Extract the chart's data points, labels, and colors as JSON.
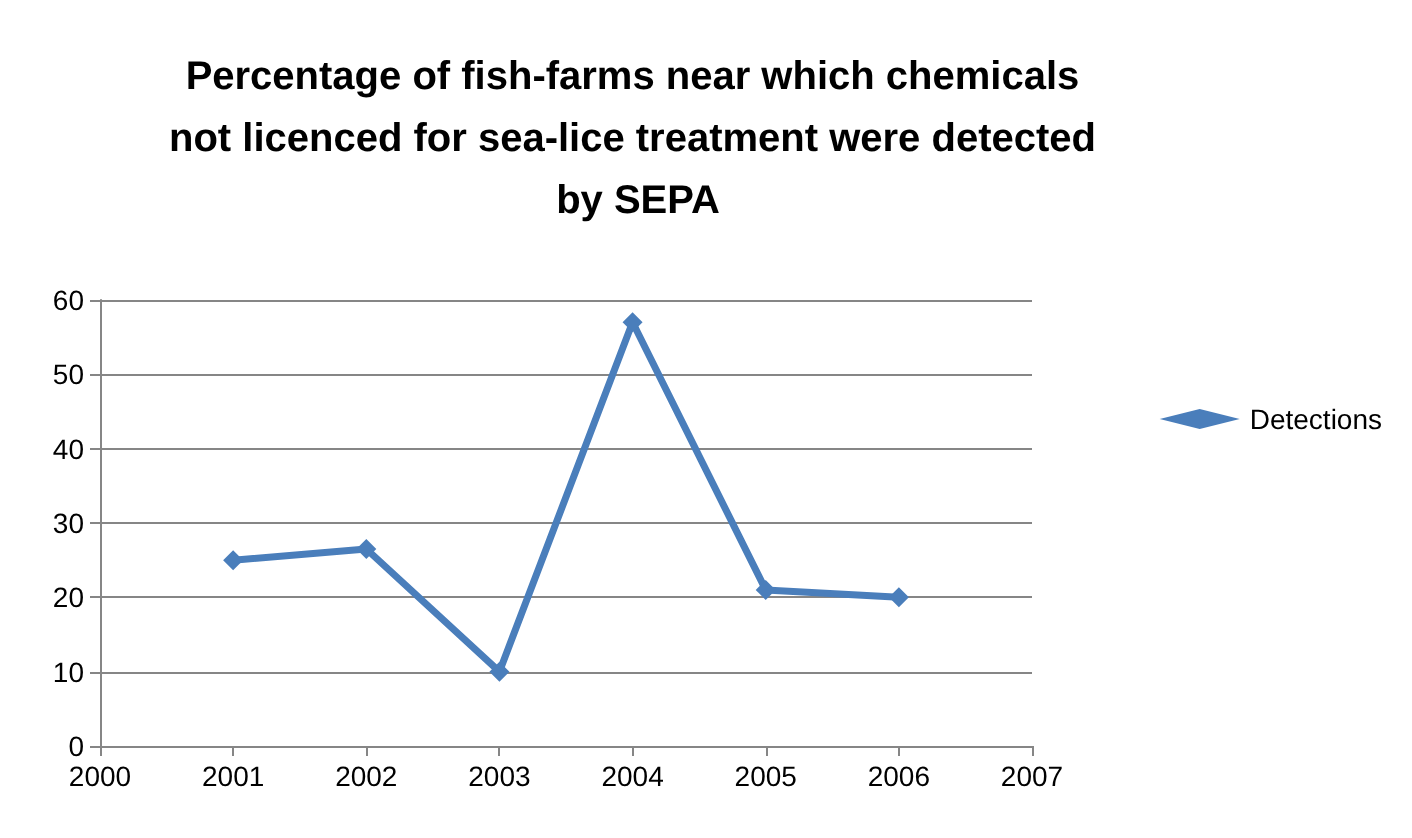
{
  "chart_data": {
    "type": "line",
    "title": "Percentage of fish-farms near which chemicals not licenced for sea-lice treatment were detected by SEPA",
    "x": [
      2001,
      2002,
      2003,
      2004,
      2005,
      2006
    ],
    "series": [
      {
        "name": "Detections",
        "color": "#4a7ebb",
        "values": [
          25,
          26.5,
          10,
          57,
          21,
          20
        ]
      }
    ],
    "xlim": [
      2000,
      2007
    ],
    "xticks": [
      2000,
      2001,
      2002,
      2003,
      2004,
      2005,
      2006,
      2007
    ],
    "ylim": [
      0,
      60
    ],
    "yticks": [
      0,
      10,
      20,
      30,
      40,
      50,
      60
    ],
    "grid": "y",
    "legend": "right",
    "marker": "diamond",
    "line_style": "solid"
  }
}
